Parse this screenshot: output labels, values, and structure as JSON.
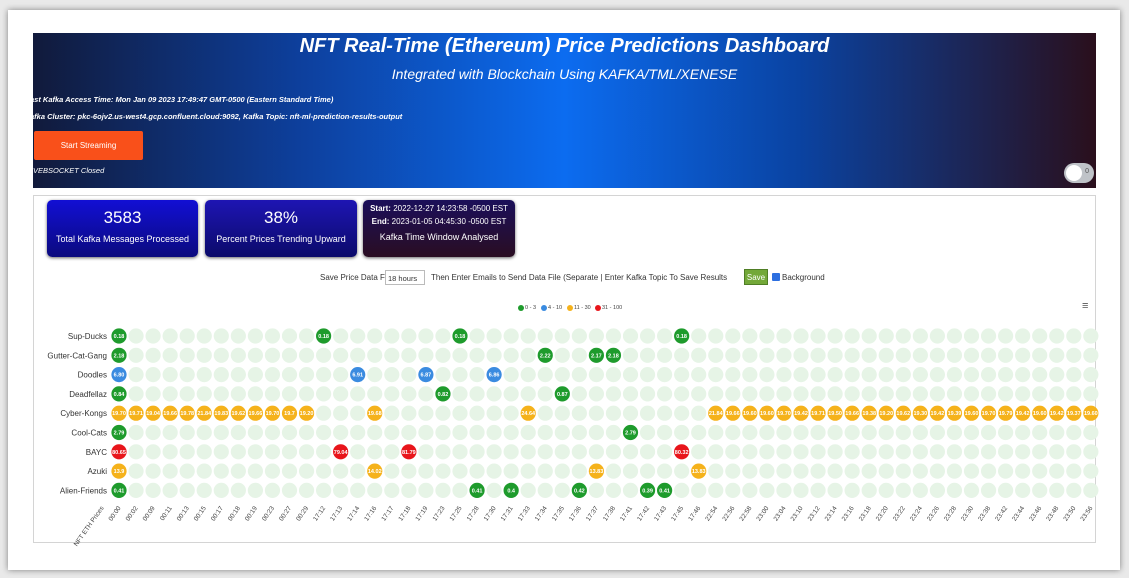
{
  "header": {
    "title": "NFT Real-Time (Ethereum) Price Predictions Dashboard",
    "subtitle": "Integrated with Blockchain Using KAFKA/TML/XENESE",
    "kafka_access": "ast Kafka Access Time: Mon Jan 09 2023 17:49:47 GMT-0500 (Eastern Standard Time)",
    "kafka_cluster": "afka Cluster: pkc-6ojv2.us-west4.gcp.confluent.cloud:9092, Kafka Topic: nft-ml-prediction-results-output",
    "start_button": "Start Streaming",
    "websocket_status": "VEBSOCKET Closed",
    "toggle_label": "0"
  },
  "cards": {
    "messages_value": "3583",
    "messages_label": "Total Kafka Messages Processed",
    "percent_value": "38%",
    "percent_label": "Percent Prices Trending Upward",
    "start_label": "Start:",
    "start_value": "2022-12-27 14:23:58 -0500 EST",
    "end_label": "End:",
    "end_value": "2023-01-05 04:45:30 -0500 EST",
    "window_label": "Kafka Time Window Analysed"
  },
  "save_bar": {
    "label": "Save Price Data For:",
    "hours_value": "18 hours",
    "instructions": "Then Enter Emails to Send Data File (Separate | Enter Kafka Topic To Save Results",
    "save_button": "Save",
    "background_label": "Background"
  },
  "colors": {
    "green": "#1e9b2c",
    "blue": "#3a8be0",
    "yellow": "#f5b21b",
    "red": "#e8151b",
    "empty": "#e6f4e6"
  },
  "chart_data": {
    "type": "heatmap",
    "legend": [
      "0 - 3",
      "4 - 10",
      "11 - 30",
      "31 - 100"
    ],
    "rows": [
      "Sup-Ducks",
      "Gutter-Cat-Gang",
      "Doodles",
      "Deadfellaz",
      "Cyber-Kongs",
      "Cool-Cats",
      "BAYC",
      "Azuki",
      "Alien-Friends"
    ],
    "x": [
      "NFT ETH Prices",
      "00:00",
      "00:02",
      "00:09",
      "00:11",
      "00:13",
      "00:15",
      "00:17",
      "00:18",
      "00:19",
      "00:23",
      "00:27",
      "00:29",
      "17:12",
      "17:13",
      "17:14",
      "17:16",
      "17:17",
      "17:18",
      "17:19",
      "17:23",
      "17:25",
      "17:28",
      "17:30",
      "17:31",
      "17:33",
      "17:34",
      "17:35",
      "17:36",
      "17:37",
      "17:38",
      "17:41",
      "17:42",
      "17:43",
      "17:45",
      "17:46",
      "22:54",
      "22:56",
      "22:58",
      "23:00",
      "23:04",
      "23:10",
      "23:12",
      "23:14",
      "23:16",
      "23:18",
      "23:20",
      "23:22",
      "23:24",
      "23:26",
      "23:28",
      "23:30",
      "23:38",
      "23:42",
      "23:44",
      "23:46",
      "23:48",
      "23:50",
      "23:56"
    ],
    "cells": [
      {
        "row": 0,
        "col": 0,
        "value": "0.18",
        "bin": 0
      },
      {
        "row": 0,
        "col": 12,
        "value": "0.18",
        "bin": 0
      },
      {
        "row": 0,
        "col": 20,
        "value": "0.18",
        "bin": 0
      },
      {
        "row": 0,
        "col": 33,
        "value": "0.18",
        "bin": 0
      },
      {
        "row": 1,
        "col": 0,
        "value": "2.18",
        "bin": 0
      },
      {
        "row": 1,
        "col": 25,
        "value": "2.22",
        "bin": 0
      },
      {
        "row": 1,
        "col": 28,
        "value": "2.17",
        "bin": 0
      },
      {
        "row": 1,
        "col": 29,
        "value": "2.18",
        "bin": 0
      },
      {
        "row": 2,
        "col": 0,
        "value": "6.80",
        "bin": 1
      },
      {
        "row": 2,
        "col": 14,
        "value": "6.91",
        "bin": 1
      },
      {
        "row": 2,
        "col": 18,
        "value": "6.87",
        "bin": 1
      },
      {
        "row": 2,
        "col": 22,
        "value": "6.86",
        "bin": 1
      },
      {
        "row": 3,
        "col": 0,
        "value": "0.84",
        "bin": 0
      },
      {
        "row": 3,
        "col": 19,
        "value": "0.82",
        "bin": 0
      },
      {
        "row": 3,
        "col": 26,
        "value": "0.87",
        "bin": 0
      },
      {
        "row": 5,
        "col": 0,
        "value": "2.79",
        "bin": 0
      },
      {
        "row": 5,
        "col": 30,
        "value": "2.79",
        "bin": 0
      },
      {
        "row": 6,
        "col": 0,
        "value": "80.65",
        "bin": 3
      },
      {
        "row": 6,
        "col": 13,
        "value": "79.04",
        "bin": 3
      },
      {
        "row": 6,
        "col": 17,
        "value": "81.79",
        "bin": 3
      },
      {
        "row": 6,
        "col": 33,
        "value": "80.32",
        "bin": 3
      },
      {
        "row": 7,
        "col": 0,
        "value": "13.9",
        "bin": 2
      },
      {
        "row": 7,
        "col": 15,
        "value": "14.02",
        "bin": 2
      },
      {
        "row": 7,
        "col": 28,
        "value": "13.83",
        "bin": 2
      },
      {
        "row": 7,
        "col": 34,
        "value": "13.83",
        "bin": 2
      },
      {
        "row": 8,
        "col": 0,
        "value": "0.41",
        "bin": 0
      },
      {
        "row": 8,
        "col": 21,
        "value": "0.41",
        "bin": 0
      },
      {
        "row": 8,
        "col": 23,
        "value": "0.4",
        "bin": 0
      },
      {
        "row": 8,
        "col": 27,
        "value": "0.42",
        "bin": 0
      },
      {
        "row": 8,
        "col": 31,
        "value": "0.39",
        "bin": 0
      },
      {
        "row": 8,
        "col": 32,
        "value": "0.41",
        "bin": 0
      }
    ],
    "cyber_kongs_values": [
      "19.70",
      "19.71",
      "19.04",
      "19.66",
      "19.78",
      "21.84",
      "19.83",
      "19.62",
      "19.66",
      "19.70",
      "19.7",
      "19.20",
      "",
      "",
      "",
      "19.68",
      "",
      "",
      "",
      "",
      "",
      "",
      "",
      "",
      "24.64",
      "",
      "",
      "",
      "",
      "",
      "",
      "",
      "",
      "",
      "",
      "21.84",
      "19.66",
      "19.60",
      "19.60",
      "19.70",
      "19.42",
      "19.71",
      "19.50",
      "19.66",
      "19.38",
      "19.20",
      "19.62",
      "19.30",
      "19.42",
      "19.39",
      "19.60",
      "19.70",
      "19.79",
      "19.42",
      "19.60",
      "19.42",
      "19.37",
      "19.60"
    ]
  }
}
